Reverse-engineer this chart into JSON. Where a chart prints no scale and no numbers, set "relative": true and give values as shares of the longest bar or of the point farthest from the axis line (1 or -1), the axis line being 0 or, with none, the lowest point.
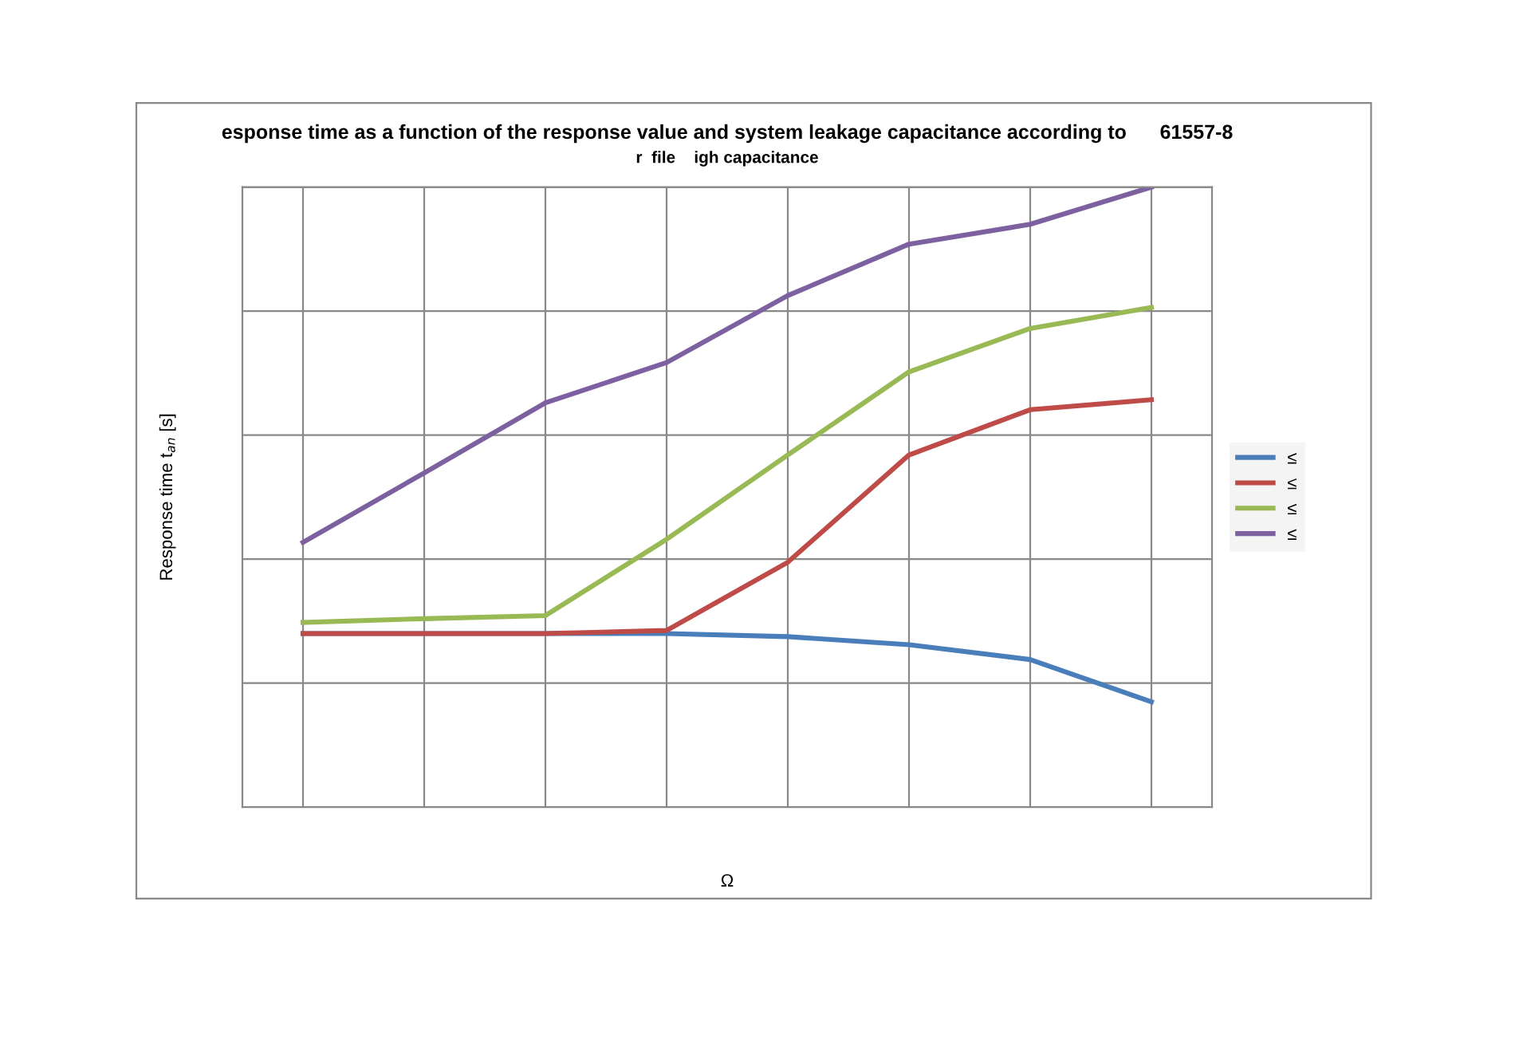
{
  "chart_data": {
    "type": "line",
    "title": "esponse time as a function of the response value and system leakage capacitance according to      61557-8",
    "subtitle": "r  file    igh capacitance",
    "xlabel": "Ω",
    "ylabel": "Response time t$_{an}$ [s]",
    "categories": [
      null,
      null,
      null,
      null,
      null,
      null,
      null,
      null
    ],
    "relative": true,
    "grid": true,
    "legend": "right",
    "tick_labels": false,
    "line_style": "solid",
    "marker": "none",
    "series": [
      {
        "name": "≤",
        "color": "#4a7ebb",
        "values": [
          0.28,
          0.28,
          0.28,
          0.28,
          0.275,
          0.262,
          0.238,
          0.17
        ]
      },
      {
        "name": "≤",
        "color": "#be4b48",
        "values": [
          0.28,
          0.28,
          0.28,
          0.285,
          0.395,
          0.568,
          0.641,
          0.657
        ]
      },
      {
        "name": "≤",
        "color": "#98b954",
        "values": [
          0.298,
          0.304,
          0.309,
          0.432,
          0.568,
          0.702,
          0.772,
          0.806
        ]
      },
      {
        "name": "≤",
        "color": "#7d60a0",
        "values": [
          0.427,
          0.539,
          0.652,
          0.717,
          0.825,
          0.908,
          0.94,
          1.0
        ]
      }
    ]
  }
}
